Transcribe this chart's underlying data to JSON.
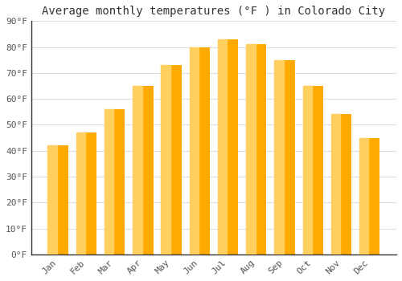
{
  "title": "Average monthly temperatures (°F ) in Colorado City",
  "months": [
    "Jan",
    "Feb",
    "Mar",
    "Apr",
    "May",
    "Jun",
    "Jul",
    "Aug",
    "Sep",
    "Oct",
    "Nov",
    "Dec"
  ],
  "values": [
    42,
    47,
    56,
    65,
    73,
    80,
    83,
    81,
    75,
    65,
    54,
    45
  ],
  "bar_color_main": "#FFAA00",
  "bar_color_light": "#FFD060",
  "ylim": [
    0,
    90
  ],
  "yticks": [
    0,
    10,
    20,
    30,
    40,
    50,
    60,
    70,
    80,
    90
  ],
  "ytick_labels": [
    "0°F",
    "10°F",
    "20°F",
    "30°F",
    "40°F",
    "50°F",
    "60°F",
    "70°F",
    "80°F",
    "90°F"
  ],
  "background_color": "#FFFFFF",
  "grid_color": "#DDDDDD",
  "title_fontsize": 10,
  "tick_fontsize": 8,
  "tick_color": "#555555",
  "spine_color": "#333333"
}
